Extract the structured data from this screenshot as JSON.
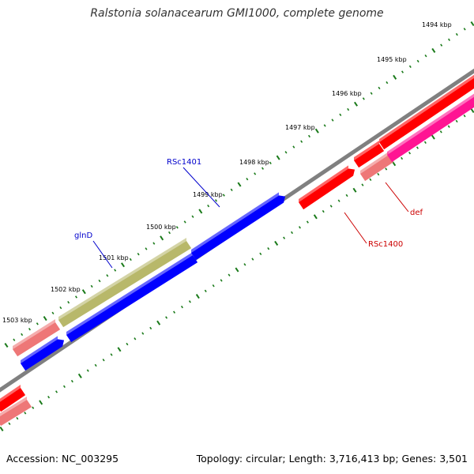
{
  "title": "Ralstonia solanacearum GMI1000, complete genome",
  "footer": {
    "accession": "Accession: NC_003295",
    "summary": "Topology: circular; Length: 3,716,413 bp; Genes: 3,501"
  },
  "colors": {
    "backbone": "#808080",
    "tick": "#1a7a1a",
    "forward_cds": "#ff0000",
    "reverse_cds": "#0000ff",
    "gene_pink": "#ee7777",
    "gene_olive": "#b8b86a",
    "gene_magenta": "#ff1493",
    "label_blue": "#0000cc",
    "label_red": "#cc0000"
  },
  "kbp_labels": [
    "1494 kbp",
    "1495 kbp",
    "1496 kbp",
    "1497 kbp",
    "1498 kbp",
    "1499 kbp",
    "1500 kbp",
    "1501 kbp",
    "1502 kbp",
    "1503 kbp"
  ],
  "gene_labels": [
    {
      "text": "RSc1401",
      "color": "#0000cc"
    },
    {
      "text": "glnD",
      "color": "#0000cc"
    },
    {
      "text": "def",
      "color": "#cc0000"
    },
    {
      "text": "RSc1400",
      "color": "#cc0000"
    }
  ]
}
